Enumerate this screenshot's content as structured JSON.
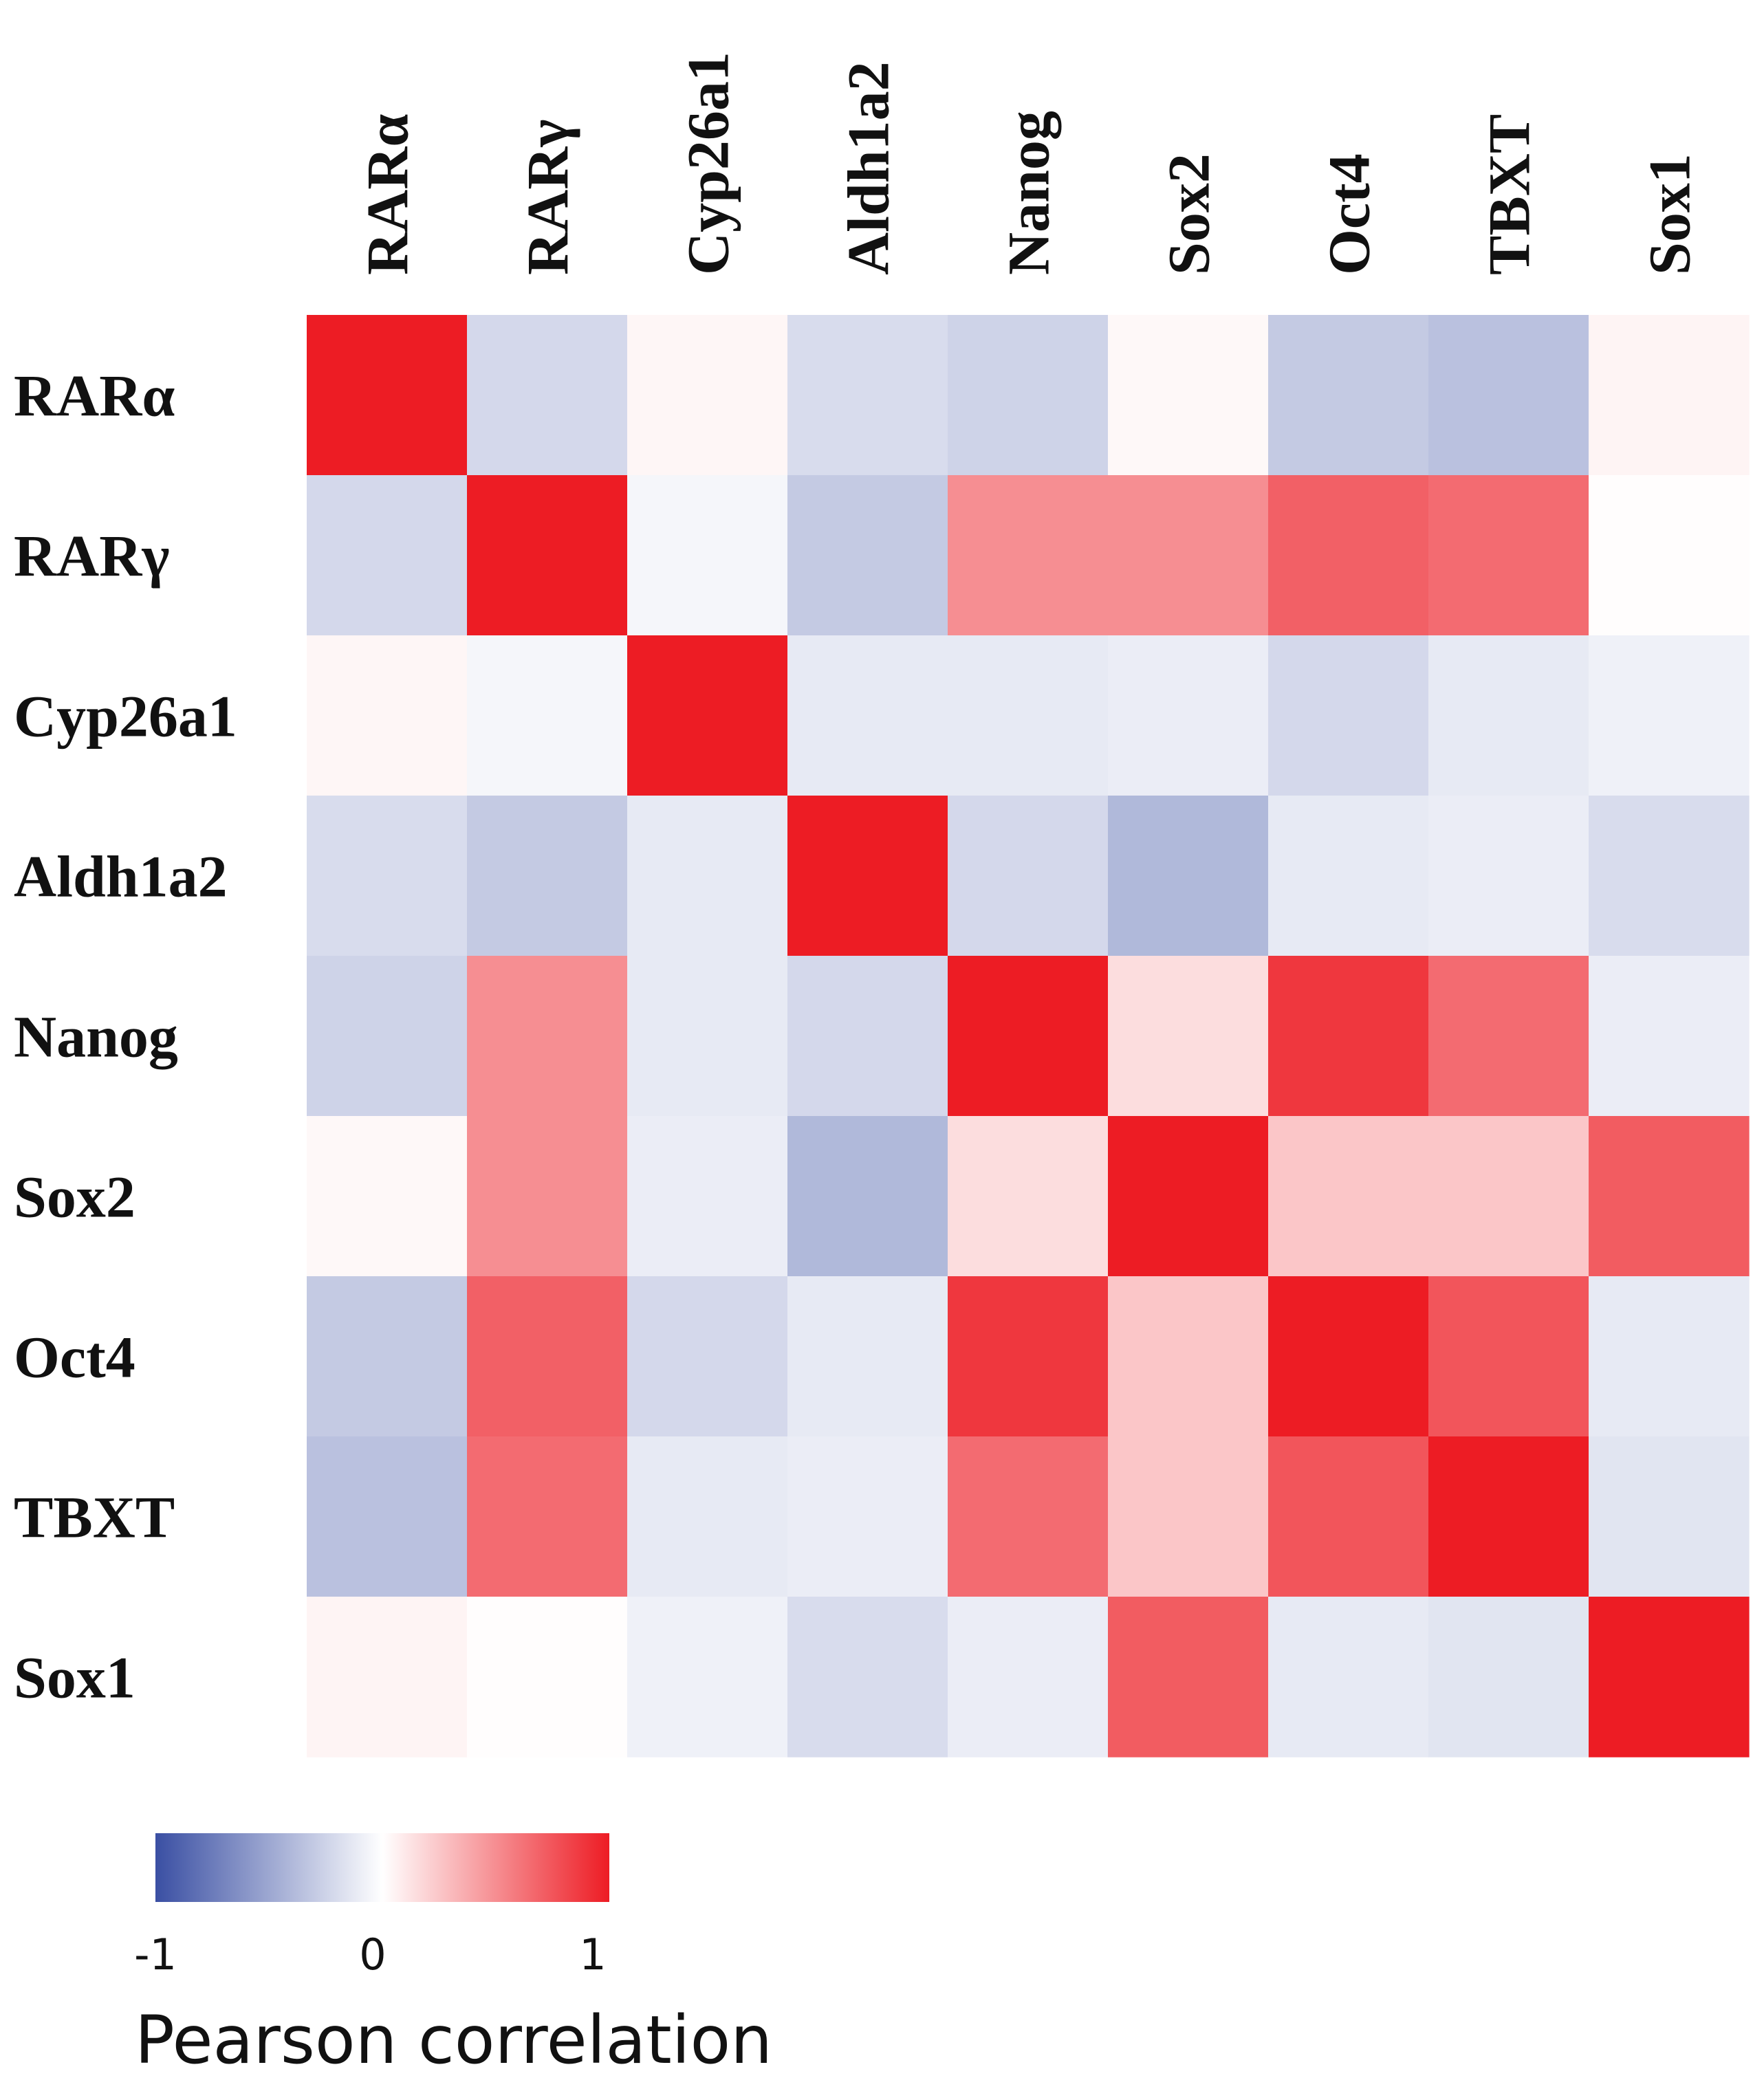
{
  "chart_data": {
    "type": "heatmap",
    "labels": [
      "RARα",
      "RARγ",
      "Cyp26a1",
      "Aldh1a2",
      "Nanog",
      "Sox2",
      "Oct4",
      "TBXT",
      "Sox1"
    ],
    "matrix": [
      [
        1.0,
        -0.22,
        0.04,
        -0.2,
        -0.25,
        0.03,
        -0.3,
        -0.35,
        0.05
      ],
      [
        -0.22,
        1.0,
        -0.05,
        -0.3,
        0.5,
        0.5,
        0.7,
        0.65,
        0.01
      ],
      [
        0.04,
        -0.05,
        1.0,
        -0.12,
        -0.12,
        -0.1,
        -0.22,
        -0.12,
        -0.08
      ],
      [
        -0.2,
        -0.3,
        -0.12,
        1.0,
        -0.22,
        -0.4,
        -0.12,
        -0.1,
        -0.2
      ],
      [
        -0.25,
        0.5,
        -0.12,
        -0.22,
        1.0,
        0.15,
        0.88,
        0.65,
        -0.1
      ],
      [
        0.03,
        0.5,
        -0.1,
        -0.4,
        0.15,
        1.0,
        0.25,
        0.25,
        0.72
      ],
      [
        -0.3,
        0.7,
        -0.22,
        -0.12,
        0.88,
        0.25,
        1.0,
        0.75,
        -0.12
      ],
      [
        -0.35,
        0.65,
        -0.12,
        -0.1,
        0.65,
        0.25,
        0.75,
        1.0,
        -0.15
      ],
      [
        0.05,
        0.01,
        -0.08,
        -0.2,
        -0.1,
        0.72,
        -0.12,
        -0.15,
        1.0
      ]
    ],
    "colorscale": {
      "min": -1,
      "mid": 0,
      "max": 1,
      "min_color": "#3a4fa3",
      "mid_color": "#ffffff",
      "max_color": "#ed1c24",
      "ticks": [
        "-1",
        "0",
        "1"
      ],
      "title": "Pearson correlation"
    }
  }
}
